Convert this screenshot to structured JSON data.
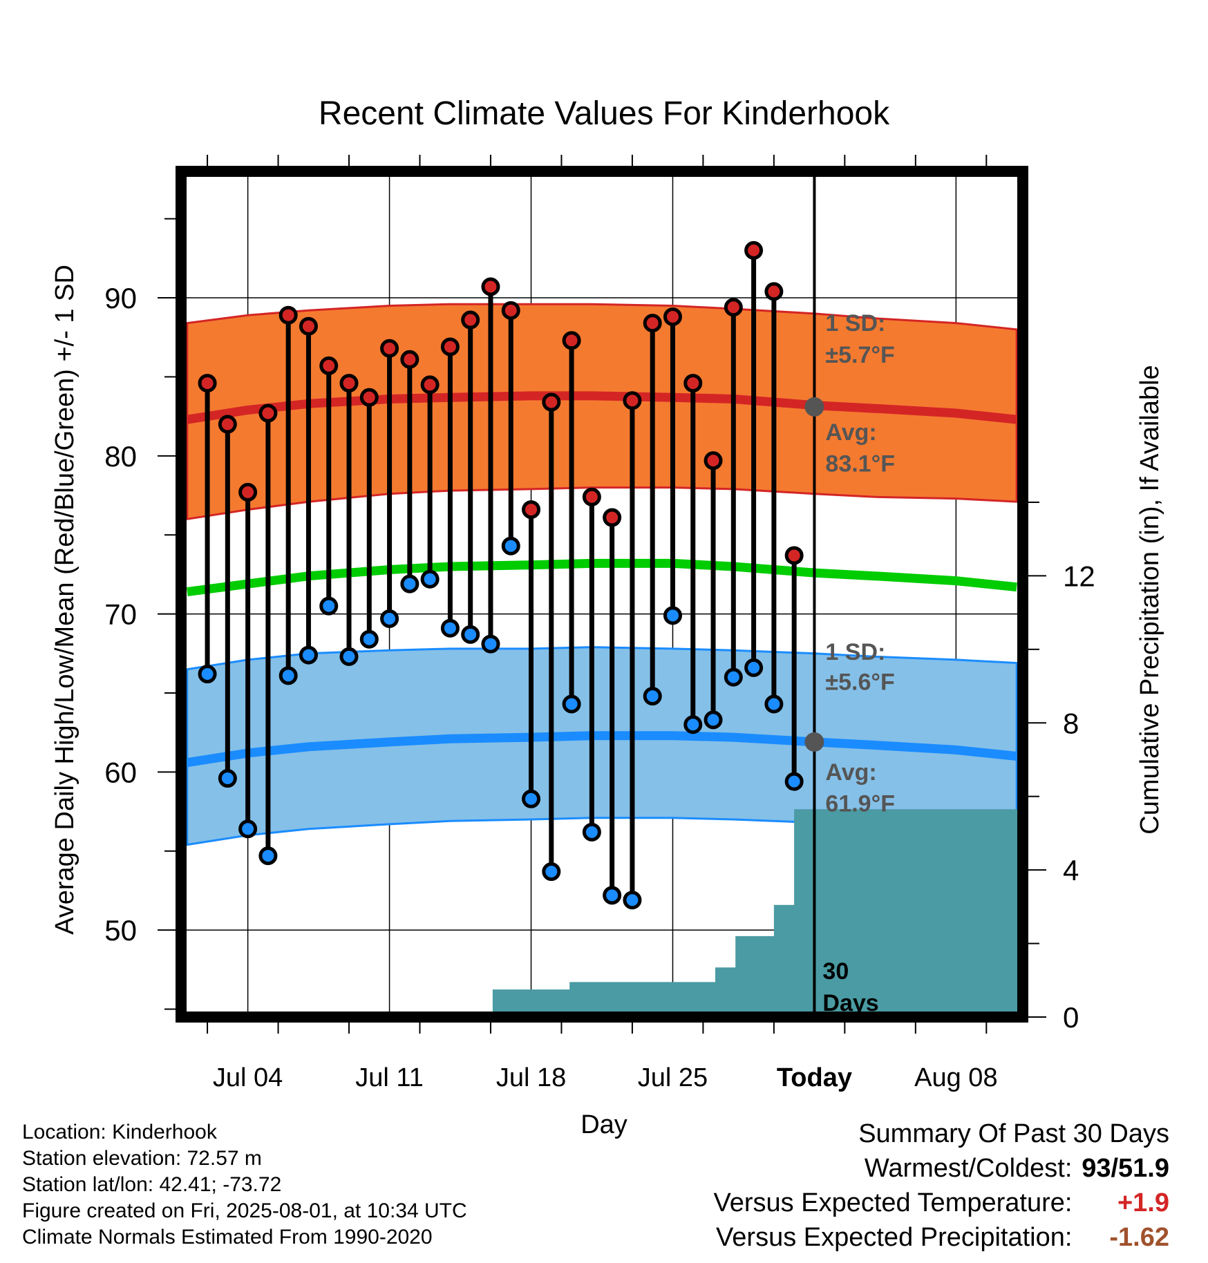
{
  "chart_data": {
    "type": "line",
    "title": "Recent Climate Values For Kinderhook",
    "xlabel": "Day",
    "ylabel": "Average Daily High/Low/Mean (Red/Blue/Green) +/- 1 SD",
    "y2label": "Cumulative Precipitation (in), If Available",
    "ylim": [
      44.5,
      98
    ],
    "y2lim": [
      0,
      23
    ],
    "xlim": [
      -2.3,
      39.3
    ],
    "yticks": [
      50,
      60,
      70,
      80,
      90
    ],
    "y2ticks": [
      0,
      4,
      8,
      12
    ],
    "xticks": [
      {
        "day": 1,
        "label": "Jul 04"
      },
      {
        "day": 8,
        "label": "Jul 11"
      },
      {
        "day": 15,
        "label": "Jul 18"
      },
      {
        "day": 22,
        "label": "Jul 25"
      },
      {
        "day": 29,
        "label": "Today"
      },
      {
        "day": 36,
        "label": "Aug 08"
      }
    ],
    "grid": true,
    "days": [
      -2,
      1,
      4,
      8,
      11,
      15,
      18,
      22,
      25,
      29,
      32,
      36,
      39
    ],
    "normals": {
      "high_avg": [
        82.3,
        82.9,
        83.3,
        83.6,
        83.7,
        83.8,
        83.8,
        83.7,
        83.6,
        83.2,
        83.0,
        82.7,
        82.3
      ],
      "high_upper": [
        88.4,
        88.9,
        89.2,
        89.5,
        89.6,
        89.6,
        89.6,
        89.5,
        89.3,
        89.0,
        88.7,
        88.4,
        88.0
      ],
      "high_lower": [
        76.0,
        76.6,
        77.1,
        77.6,
        77.8,
        77.9,
        78.0,
        78.0,
        77.9,
        77.6,
        77.4,
        77.3,
        77.1
      ],
      "low_avg": [
        60.6,
        61.2,
        61.6,
        61.9,
        62.1,
        62.2,
        62.3,
        62.3,
        62.2,
        61.9,
        61.7,
        61.4,
        61.0
      ],
      "low_upper": [
        66.5,
        67.1,
        67.5,
        67.7,
        67.8,
        67.8,
        67.9,
        67.8,
        67.7,
        67.5,
        67.3,
        67.1,
        66.9
      ],
      "low_lower": [
        55.4,
        56.0,
        56.4,
        56.7,
        56.9,
        57.0,
        57.1,
        57.1,
        57.0,
        56.8,
        56.6,
        56.3,
        56.0
      ],
      "mean_avg": [
        71.4,
        71.9,
        72.4,
        72.8,
        73.0,
        73.1,
        73.2,
        73.2,
        73.0,
        72.6,
        72.4,
        72.1,
        71.7
      ]
    },
    "daily_days": [
      -1,
      0,
      1,
      2,
      3,
      4,
      5,
      6,
      7,
      8,
      9,
      10,
      11,
      12,
      13,
      14,
      15,
      16,
      17,
      18,
      19,
      20,
      21,
      22,
      23,
      24,
      25,
      26,
      27,
      28
    ],
    "daily_high": [
      84.6,
      82.0,
      77.7,
      82.7,
      88.9,
      88.2,
      85.7,
      84.6,
      83.7,
      86.8,
      86.1,
      84.5,
      86.9,
      88.6,
      90.7,
      89.2,
      76.6,
      83.4,
      87.3,
      77.4,
      76.1,
      83.5,
      88.4,
      88.8,
      84.6,
      79.7,
      89.4,
      93.0,
      90.4,
      73.7
    ],
    "daily_low": [
      66.2,
      59.6,
      56.4,
      54.7,
      66.1,
      67.4,
      70.5,
      67.3,
      68.4,
      69.7,
      71.9,
      72.2,
      69.1,
      68.7,
      68.1,
      74.3,
      58.3,
      53.7,
      64.3,
      56.2,
      52.2,
      51.9,
      64.8,
      69.9,
      63.0,
      63.3,
      66.0,
      66.6,
      64.3,
      59.4
    ],
    "precip_x": [
      -2,
      5.6,
      5.6,
      9.7,
      9.7,
      10.9,
      10.9,
      13.1,
      13.1,
      16.9,
      16.9,
      24.1,
      24.1,
      25.1,
      25.1,
      27.0,
      27.0,
      28.0,
      28.0,
      39.3
    ],
    "precip_y": [
      0,
      0,
      0.05,
      0.05,
      0.1,
      0.1,
      0.15,
      0.15,
      0.75,
      0.75,
      0.95,
      0.95,
      1.35,
      1.35,
      2.2,
      2.2,
      3.05,
      3.05,
      5.65,
      5.65
    ],
    "annotations": {
      "high_sd_line1": "1 SD:",
      "high_sd_line2": "±5.7°F",
      "high_avg_line1": "Avg:",
      "high_avg_line2": "83.1°F",
      "low_sd_line1": "1 SD:",
      "low_sd_line2": "±5.6°F",
      "low_avg_line1": "Avg:",
      "low_avg_line2": "61.9°F",
      "precip_line1": "30",
      "precip_line2": "Days",
      "today_high": 83.1,
      "today_low": 61.9
    },
    "colors": {
      "high_band": "#f47a30",
      "high_line": "#d42525",
      "low_band": "#85c0e8",
      "low_line": "#1a8cff",
      "mean_line": "#00cc00",
      "precip": "#4a9ba3",
      "high_dot": "#d42525",
      "low_dot": "#1a8cff",
      "annotation": "#555555",
      "anomaly_temp": "#d42525",
      "anomaly_precip": "#a0522d"
    }
  },
  "info": {
    "location": "Location: Kinderhook",
    "elevation": "Station elevation: 72.57 m",
    "latlon": "Station lat/lon: 42.41; -73.72",
    "created": "Figure created on Fri, 2025-08-01, at 10:34 UTC",
    "normals": "Climate Normals Estimated From 1990-2020"
  },
  "summary": {
    "title": "Summary Of Past 30 Days",
    "warm_cold_label": "Warmest/Coldest:",
    "warm_cold_value": "93/51.9",
    "temp_label": "Versus Expected Temperature:",
    "temp_value": "+1.9",
    "precip_label": "Versus Expected Precipitation:",
    "precip_value": "-1.62"
  }
}
